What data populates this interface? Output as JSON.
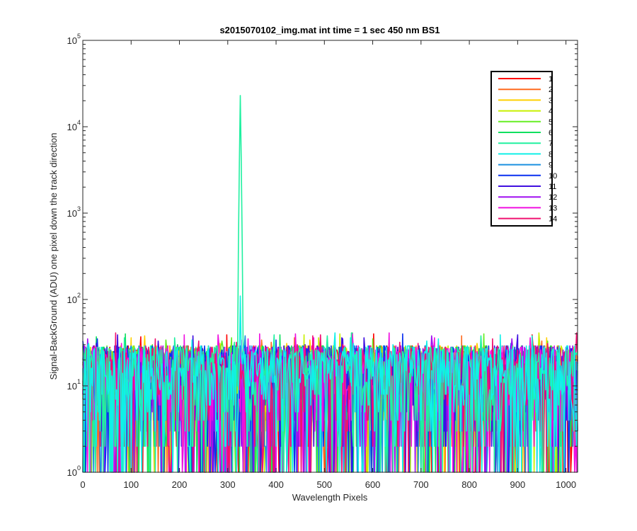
{
  "chart_data": {
    "type": "line",
    "title": "s2015070102_img.mat int time = 1 sec  450 nm BS1",
    "xlabel": "Wavelength Pixels",
    "ylabel": "Signal-BackGround (ADU) one pixel down the track direction",
    "xlim": [
      0,
      1024
    ],
    "ylim": [
      1,
      100000
    ],
    "yscale": "log",
    "grid": false,
    "legend_position": "top-right",
    "x_ticks": [
      "0",
      "100",
      "200",
      "300",
      "400",
      "500",
      "600",
      "700",
      "800",
      "900",
      "1000"
    ],
    "y_ticks": [
      {
        "base": "10",
        "exp": "0"
      },
      {
        "base": "10",
        "exp": "1"
      },
      {
        "base": "10",
        "exp": "2"
      },
      {
        "base": "10",
        "exp": "3"
      },
      {
        "base": "10",
        "exp": "4"
      },
      {
        "base": "10",
        "exp": "5"
      }
    ],
    "series": [
      {
        "name": "1",
        "color": "#ff0000"
      },
      {
        "name": "2",
        "color": "#ff6a1f"
      },
      {
        "name": "3",
        "color": "#ffd000"
      },
      {
        "name": "4",
        "color": "#c8f000"
      },
      {
        "name": "5",
        "color": "#66ee22"
      },
      {
        "name": "6",
        "color": "#10e060"
      },
      {
        "name": "7",
        "color": "#20f0a0",
        "peak": {
          "x": 326,
          "y": 23000
        }
      },
      {
        "name": "8",
        "color": "#10f0e8",
        "peak": {
          "x": 326,
          "y": 110
        }
      },
      {
        "name": "9",
        "color": "#1a90e0"
      },
      {
        "name": "10",
        "color": "#0a30f0"
      },
      {
        "name": "11",
        "color": "#4010e0"
      },
      {
        "name": "12",
        "color": "#a010f0"
      },
      {
        "name": "13",
        "color": "#f010e0"
      },
      {
        "name": "14",
        "color": "#f01070"
      }
    ],
    "noise": {
      "typical_range": [
        1,
        30
      ],
      "max_spike": 42
    }
  }
}
